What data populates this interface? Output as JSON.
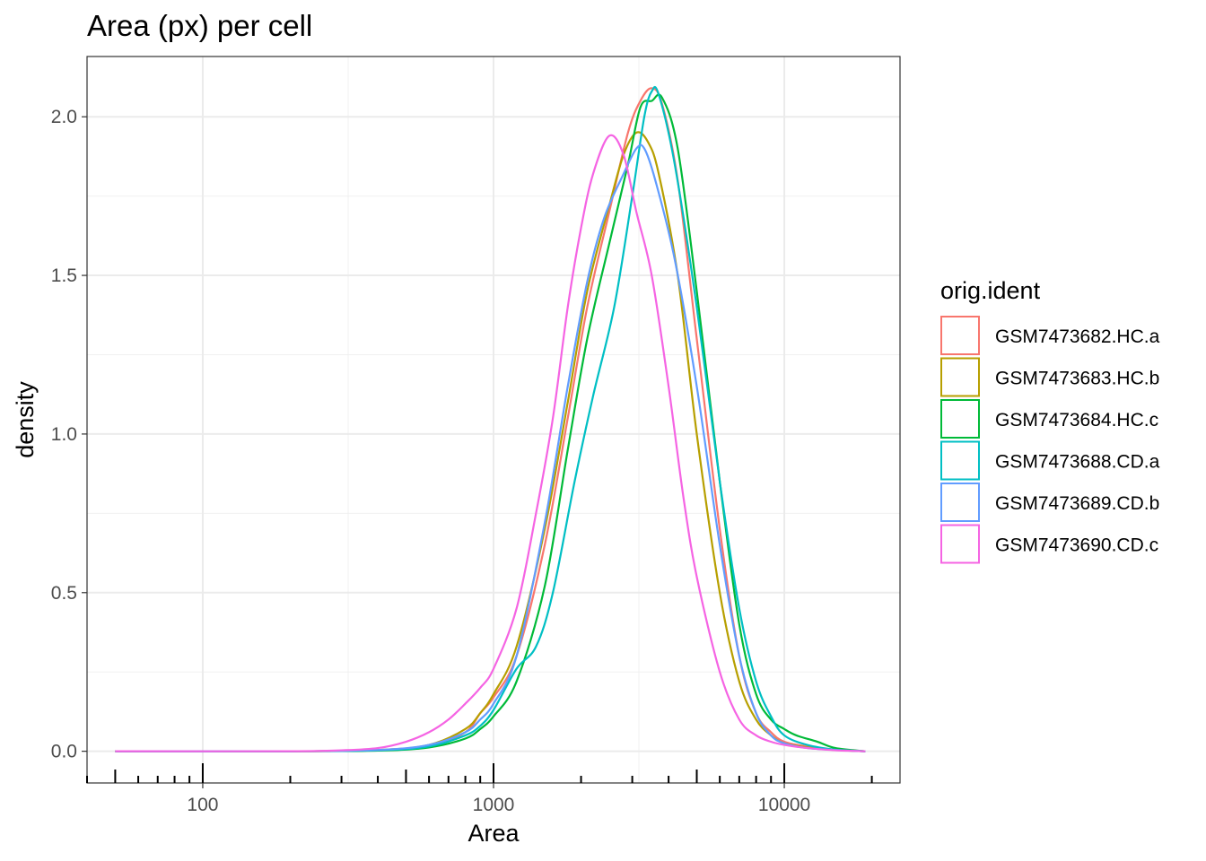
{
  "chart_data": {
    "type": "line",
    "title": "Area (px) per cell",
    "xlabel": "Area",
    "ylabel": "density",
    "x_scale": "log10",
    "xlim": [
      40,
      25000
    ],
    "ylim": [
      -0.1,
      2.19
    ],
    "x_ticks": [
      {
        "value": 100,
        "label": "100"
      },
      {
        "value": 1000,
        "label": "1000"
      },
      {
        "value": 10000,
        "label": "10000"
      }
    ],
    "y_ticks": [
      {
        "value": 0,
        "label": "0.0"
      },
      {
        "value": 0.5,
        "label": "0.5"
      },
      {
        "value": 1,
        "label": "1.0"
      },
      {
        "value": 1.5,
        "label": "1.5"
      },
      {
        "value": 2,
        "label": "2.0"
      }
    ],
    "grid": true,
    "legend": {
      "title": "orig.ident",
      "position": "right"
    },
    "series": [
      {
        "name": "GSM7473682.HC.a",
        "color": "#F8766D",
        "points": [
          [
            50,
            0
          ],
          [
            200,
            0
          ],
          [
            400,
            0.003
          ],
          [
            600,
            0.015
          ],
          [
            800,
            0.06
          ],
          [
            900,
            0.12
          ],
          [
            1000,
            0.17
          ],
          [
            1200,
            0.3
          ],
          [
            1500,
            0.65
          ],
          [
            1800,
            1.05
          ],
          [
            2100,
            1.4
          ],
          [
            2500,
            1.7
          ],
          [
            2900,
            1.95
          ],
          [
            3200,
            2.05
          ],
          [
            3500,
            2.09
          ],
          [
            3800,
            2.04
          ],
          [
            4300,
            1.8
          ],
          [
            5000,
            1.3
          ],
          [
            6000,
            0.7
          ],
          [
            7000,
            0.3
          ],
          [
            8000,
            0.12
          ],
          [
            9000,
            0.06
          ],
          [
            10000,
            0.03
          ],
          [
            12000,
            0.015
          ],
          [
            15000,
            0.005
          ],
          [
            19000,
            0
          ]
        ]
      },
      {
        "name": "GSM7473683.HC.b",
        "color": "#B79F00",
        "points": [
          [
            50,
            0
          ],
          [
            200,
            0
          ],
          [
            400,
            0.004
          ],
          [
            600,
            0.02
          ],
          [
            800,
            0.07
          ],
          [
            900,
            0.12
          ],
          [
            1000,
            0.18
          ],
          [
            1200,
            0.33
          ],
          [
            1500,
            0.7
          ],
          [
            1800,
            1.1
          ],
          [
            2100,
            1.45
          ],
          [
            2500,
            1.72
          ],
          [
            2800,
            1.88
          ],
          [
            3100,
            1.95
          ],
          [
            3400,
            1.92
          ],
          [
            3700,
            1.82
          ],
          [
            4300,
            1.5
          ],
          [
            5000,
            1.0
          ],
          [
            6000,
            0.5
          ],
          [
            7000,
            0.22
          ],
          [
            8000,
            0.1
          ],
          [
            9000,
            0.05
          ],
          [
            10000,
            0.025
          ],
          [
            12000,
            0.012
          ],
          [
            15000,
            0.004
          ],
          [
            19000,
            0
          ]
        ]
      },
      {
        "name": "GSM7473684.HC.c",
        "color": "#00BA38",
        "points": [
          [
            50,
            0
          ],
          [
            200,
            0
          ],
          [
            400,
            0.002
          ],
          [
            600,
            0.012
          ],
          [
            800,
            0.04
          ],
          [
            900,
            0.07
          ],
          [
            1000,
            0.11
          ],
          [
            1200,
            0.22
          ],
          [
            1500,
            0.52
          ],
          [
            1800,
            0.95
          ],
          [
            2100,
            1.3
          ],
          [
            2500,
            1.6
          ],
          [
            2900,
            1.85
          ],
          [
            3200,
            2.03
          ],
          [
            3500,
            2.05
          ],
          [
            3800,
            2.06
          ],
          [
            4300,
            1.9
          ],
          [
            5000,
            1.45
          ],
          [
            6000,
            0.85
          ],
          [
            7000,
            0.4
          ],
          [
            8000,
            0.18
          ],
          [
            9000,
            0.1
          ],
          [
            10000,
            0.07
          ],
          [
            11000,
            0.05
          ],
          [
            13000,
            0.03
          ],
          [
            15000,
            0.01
          ],
          [
            19000,
            0
          ]
        ]
      },
      {
        "name": "GSM7473688.CD.a",
        "color": "#00BFC4",
        "points": [
          [
            50,
            0
          ],
          [
            200,
            0
          ],
          [
            400,
            0.003
          ],
          [
            600,
            0.015
          ],
          [
            800,
            0.05
          ],
          [
            900,
            0.08
          ],
          [
            1000,
            0.13
          ],
          [
            1200,
            0.26
          ],
          [
            1400,
            0.33
          ],
          [
            1600,
            0.5
          ],
          [
            1900,
            0.85
          ],
          [
            2200,
            1.12
          ],
          [
            2600,
            1.4
          ],
          [
            3000,
            1.75
          ],
          [
            3300,
            2.0
          ],
          [
            3500,
            2.08
          ],
          [
            3700,
            2.07
          ],
          [
            4200,
            1.85
          ],
          [
            5000,
            1.4
          ],
          [
            6000,
            0.85
          ],
          [
            7000,
            0.45
          ],
          [
            8000,
            0.22
          ],
          [
            9000,
            0.11
          ],
          [
            10000,
            0.05
          ],
          [
            12000,
            0.02
          ],
          [
            15000,
            0.005
          ],
          [
            19000,
            0
          ]
        ]
      },
      {
        "name": "GSM7473689.CD.b",
        "color": "#619CFF",
        "points": [
          [
            50,
            0
          ],
          [
            200,
            0
          ],
          [
            400,
            0.004
          ],
          [
            600,
            0.02
          ],
          [
            800,
            0.06
          ],
          [
            900,
            0.1
          ],
          [
            1000,
            0.15
          ],
          [
            1200,
            0.3
          ],
          [
            1500,
            0.72
          ],
          [
            1800,
            1.15
          ],
          [
            2100,
            1.48
          ],
          [
            2400,
            1.68
          ],
          [
            2800,
            1.82
          ],
          [
            3100,
            1.9
          ],
          [
            3300,
            1.9
          ],
          [
            3600,
            1.8
          ],
          [
            4200,
            1.55
          ],
          [
            5000,
            1.15
          ],
          [
            6000,
            0.65
          ],
          [
            7000,
            0.3
          ],
          [
            8000,
            0.12
          ],
          [
            9000,
            0.05
          ],
          [
            10000,
            0.025
          ],
          [
            12000,
            0.01
          ],
          [
            15000,
            0.004
          ],
          [
            19000,
            0
          ]
        ]
      },
      {
        "name": "GSM7473690.CD.c",
        "color": "#F564E3",
        "points": [
          [
            50,
            0
          ],
          [
            200,
            0
          ],
          [
            300,
            0.003
          ],
          [
            400,
            0.01
          ],
          [
            500,
            0.03
          ],
          [
            600,
            0.06
          ],
          [
            700,
            0.1
          ],
          [
            800,
            0.15
          ],
          [
            900,
            0.2
          ],
          [
            1000,
            0.26
          ],
          [
            1200,
            0.45
          ],
          [
            1400,
            0.75
          ],
          [
            1600,
            1.05
          ],
          [
            1800,
            1.4
          ],
          [
            2000,
            1.65
          ],
          [
            2200,
            1.82
          ],
          [
            2500,
            1.94
          ],
          [
            2800,
            1.88
          ],
          [
            3100,
            1.7
          ],
          [
            3500,
            1.5
          ],
          [
            4000,
            1.15
          ],
          [
            4500,
            0.8
          ],
          [
            5000,
            0.55
          ],
          [
            6000,
            0.25
          ],
          [
            7000,
            0.1
          ],
          [
            8000,
            0.05
          ],
          [
            9000,
            0.03
          ],
          [
            10000,
            0.02
          ],
          [
            12000,
            0.01
          ],
          [
            15000,
            0.003
          ],
          [
            19000,
            0
          ]
        ]
      }
    ]
  }
}
